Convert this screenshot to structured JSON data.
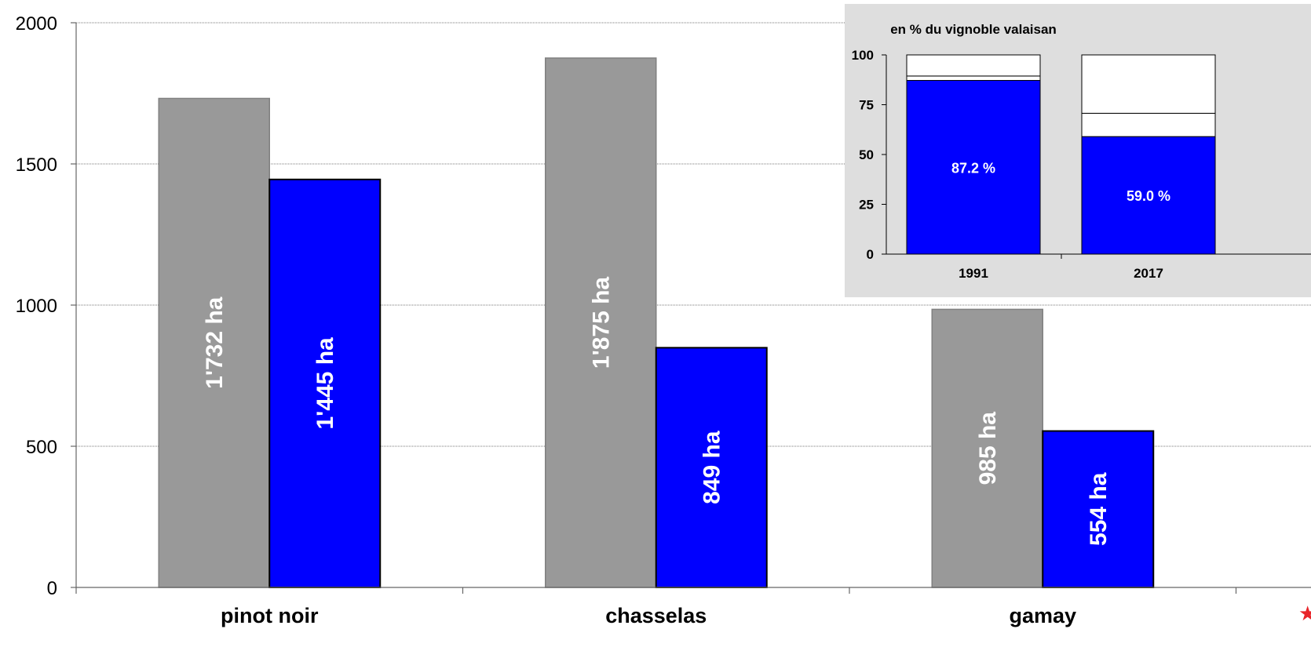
{
  "colors": {
    "series_1991": "#999999",
    "series_2017": "#0000ff",
    "inset_background": "#dedede",
    "star": "#e8252a"
  },
  "chart_data": [
    {
      "type": "bar",
      "title": "",
      "xlabel": "",
      "ylabel": "",
      "categories": [
        "pinot noir",
        "chasselas",
        "gamay"
      ],
      "series": [
        {
          "values": [
            1732,
            1875,
            985
          ],
          "labels": [
            "1'732 ha",
            "1'875 ha",
            "985 ha"
          ]
        },
        {
          "values": [
            1445,
            849,
            554
          ],
          "labels": [
            "1'445 ha",
            "849 ha",
            "554 ha"
          ]
        }
      ],
      "ylim": [
        0,
        2000
      ],
      "yticks": [
        0,
        500,
        1000,
        1500,
        2000
      ],
      "grid": true
    },
    {
      "type": "bar",
      "stacked": true,
      "title": "en % du vignoble valaisan",
      "categories": [
        "1991",
        "2017"
      ],
      "series": [
        {
          "values": [
            87.2,
            59.0
          ],
          "labels": [
            "87.2 %",
            "59.0 %"
          ]
        },
        {
          "values": [
            2.2,
            11.7
          ]
        },
        {
          "values": [
            10.6,
            29.3
          ]
        }
      ],
      "ylim": [
        0,
        100
      ],
      "yticks": [
        0,
        25,
        50,
        75,
        100
      ],
      "grid": false
    }
  ],
  "decorations": {
    "star_icon": "★"
  }
}
